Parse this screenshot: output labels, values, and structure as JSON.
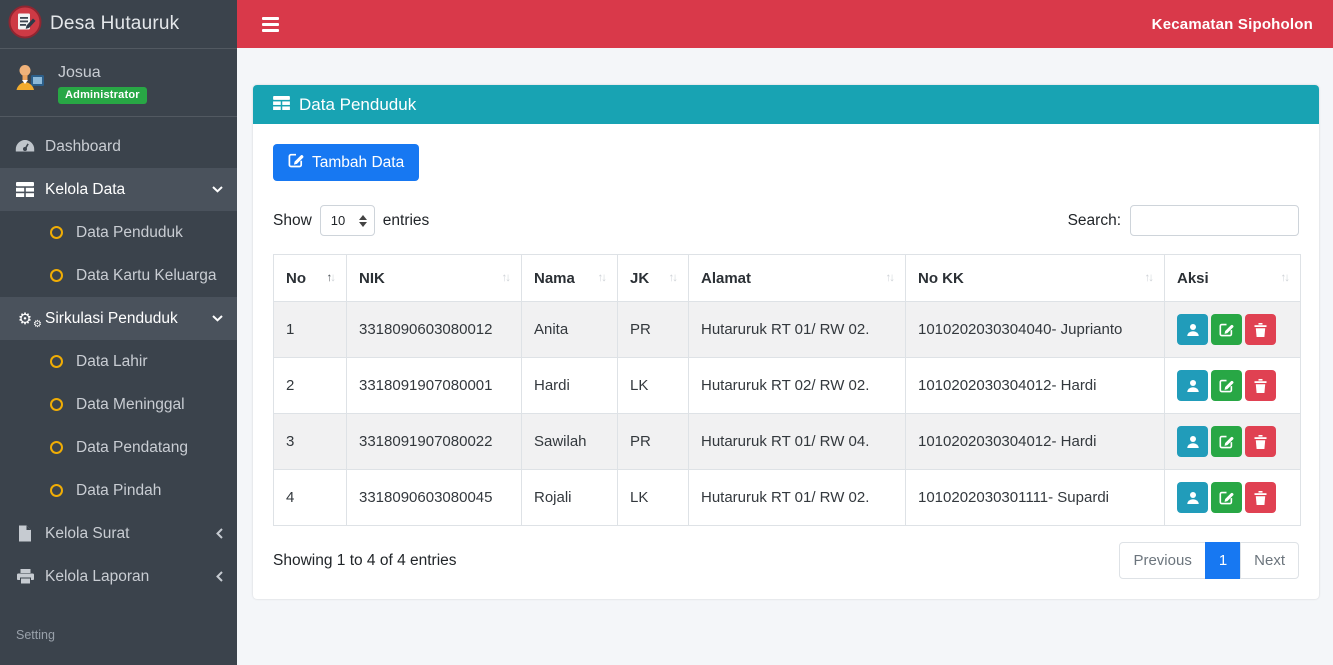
{
  "brand": {
    "title": "Desa Hutauruk"
  },
  "topbar": {
    "right_label": "Kecamatan Sipoholon"
  },
  "user": {
    "name": "Josua",
    "role_badge": "Administrator"
  },
  "sidebar": {
    "items": [
      {
        "label": "Dashboard",
        "icon": "tachometer-icon"
      },
      {
        "label": "Kelola Data",
        "icon": "table-icon",
        "chevron": "down",
        "open": true
      },
      {
        "label": "Data Penduduk",
        "icon": "circle-icon"
      },
      {
        "label": "Data Kartu Keluarga",
        "icon": "circle-icon"
      },
      {
        "label": "Sirkulasi Penduduk",
        "icon": "gears-icon",
        "chevron": "down",
        "open": true
      },
      {
        "label": "Data Lahir",
        "icon": "circle-icon"
      },
      {
        "label": "Data Meninggal",
        "icon": "circle-icon"
      },
      {
        "label": "Data Pendatang",
        "icon": "circle-icon"
      },
      {
        "label": "Data Pindah",
        "icon": "circle-icon"
      },
      {
        "label": "Kelola Surat",
        "icon": "file-icon",
        "chevron": "left"
      },
      {
        "label": "Kelola Laporan",
        "icon": "printer-icon",
        "chevron": "left"
      }
    ],
    "footer_label": "Setting"
  },
  "card": {
    "title": "Data Penduduk"
  },
  "toolbar": {
    "add_button_label": "Tambah Data"
  },
  "table_controls": {
    "show_label": "Show",
    "page_length": "10",
    "entries_label": "entries",
    "search_label": "Search:",
    "search_value": ""
  },
  "table": {
    "columns": [
      "No",
      "NIK",
      "Nama",
      "JK",
      "Alamat",
      "No KK",
      "Aksi"
    ],
    "rows": [
      {
        "no": "1",
        "nik": "3318090603080012",
        "nama": "Anita",
        "jk": "PR",
        "alamat": "Hutaruruk RT 01/ RW 02.",
        "no_kk": "1010202030304040- Juprianto"
      },
      {
        "no": "2",
        "nik": "3318091907080001",
        "nama": "Hardi",
        "jk": "LK",
        "alamat": "Hutaruruk RT 02/ RW 02.",
        "no_kk": "1010202030304012- Hardi"
      },
      {
        "no": "3",
        "nik": "3318091907080022",
        "nama": "Sawilah",
        "jk": "PR",
        "alamat": "Hutaruruk RT 01/ RW 04.",
        "no_kk": "1010202030304012- Hardi"
      },
      {
        "no": "4",
        "nik": "3318090603080045",
        "nama": "Rojali",
        "jk": "LK",
        "alamat": "Hutaruruk RT 01/ RW 02.",
        "no_kk": "1010202030301111- Supardi"
      }
    ]
  },
  "table_footer": {
    "showing_text": "Showing 1 to 4 of 4 entries",
    "pagination": {
      "previous": "Previous",
      "page": "1",
      "next": "Next"
    }
  },
  "colors": {
    "navbar": "#d9394a",
    "sidebar": "#3b434c",
    "sidebar_active": "#4a525c",
    "card_header": "#18a3b3",
    "primary_blue": "#1778f2",
    "badge_green": "#28a745",
    "warning_yellow": "#f0ad05",
    "info_teal": "#219cba",
    "success_green": "#28a745",
    "danger_red": "#e04152"
  }
}
